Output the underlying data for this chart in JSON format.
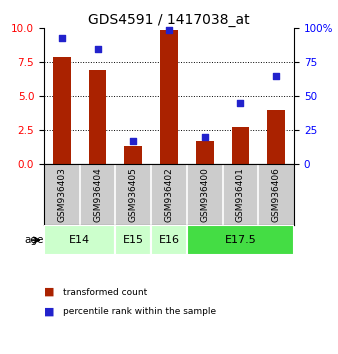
{
  "title": "GDS4591 / 1417038_at",
  "samples": [
    "GSM936403",
    "GSM936404",
    "GSM936405",
    "GSM936402",
    "GSM936400",
    "GSM936401",
    "GSM936406"
  ],
  "red_values": [
    7.9,
    6.9,
    1.3,
    9.9,
    1.7,
    2.7,
    4.0
  ],
  "blue_values": [
    93,
    85,
    17,
    99,
    20,
    45,
    65
  ],
  "ylim_left": [
    0,
    10
  ],
  "ylim_right": [
    0,
    100
  ],
  "yticks_left": [
    0,
    2.5,
    5,
    7.5,
    10
  ],
  "yticks_right": [
    0,
    25,
    50,
    75,
    100
  ],
  "age_groups": [
    {
      "label": "E14",
      "start": 0,
      "end": 2,
      "color": "#ccffcc"
    },
    {
      "label": "E15",
      "start": 2,
      "end": 3,
      "color": "#ccffcc"
    },
    {
      "label": "E16",
      "start": 3,
      "end": 4,
      "color": "#ccffcc"
    },
    {
      "label": "E17.5",
      "start": 4,
      "end": 7,
      "color": "#44dd44"
    }
  ],
  "bar_color": "#aa2200",
  "dot_color": "#2222cc",
  "bar_width": 0.5,
  "legend_red": "transformed count",
  "legend_blue": "percentile rank within the sample",
  "age_label": "age",
  "sample_bg": "#cccccc",
  "title_fontsize": 10,
  "tick_fontsize": 7.5,
  "sample_fontsize": 6.5,
  "age_fontsize": 8
}
